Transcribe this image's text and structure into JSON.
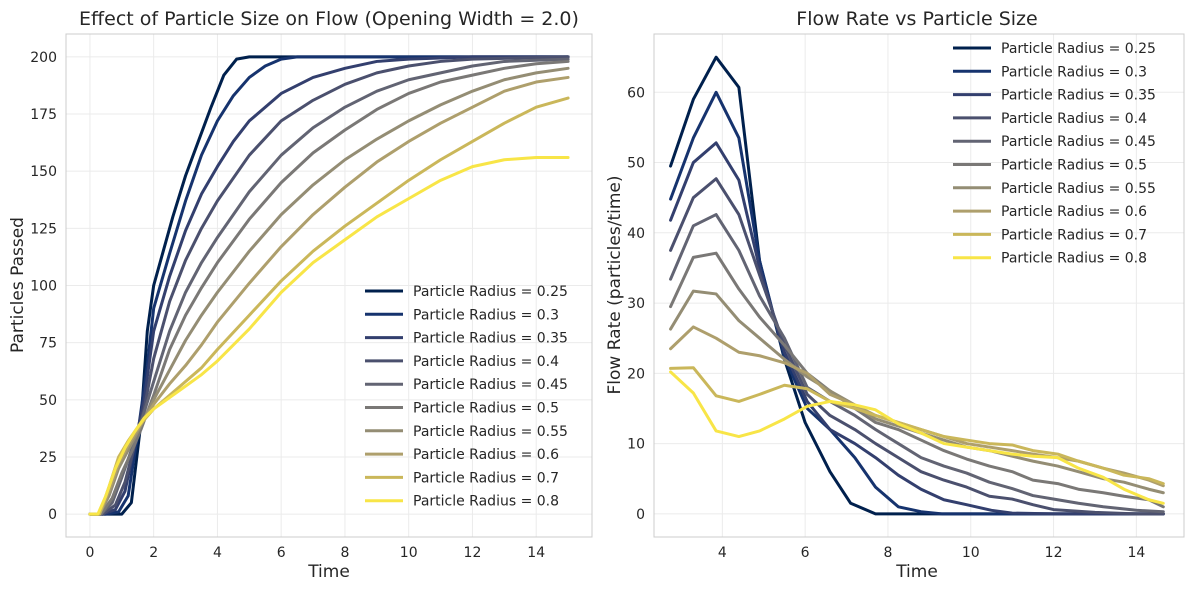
{
  "chart_data": [
    {
      "type": "line",
      "title": "Effect of Particle Size on Flow (Opening Width = 2.0)",
      "xlabel": "Time",
      "ylabel": "Particles Passed",
      "xlim": [
        -0.75,
        15.75
      ],
      "ylim": [
        -10,
        210
      ],
      "xticks": [
        0,
        2,
        4,
        6,
        8,
        10,
        12,
        14
      ],
      "yticks": [
        0,
        25,
        50,
        75,
        100,
        125,
        150,
        175,
        200
      ],
      "grid": true,
      "legend_position": "lower right",
      "series": [
        {
          "name": "Particle Radius = 0.25",
          "color": "#00204d",
          "x": [
            0,
            0.5,
            1,
            1.3,
            1.6,
            1.8,
            2,
            2.3,
            2.6,
            3,
            3.4,
            3.8,
            4.2,
            4.6,
            5,
            6,
            8,
            10,
            12,
            15
          ],
          "y": [
            0,
            0,
            0,
            5,
            40,
            80,
            100,
            115,
            130,
            148,
            163,
            178,
            192,
            199,
            200,
            200,
            200,
            200,
            200,
            200
          ]
        },
        {
          "name": "Particle Radius = 0.3",
          "color": "#16336e",
          "x": [
            0,
            0.5,
            0.9,
            1.2,
            1.5,
            1.8,
            2,
            2.5,
            3,
            3.5,
            4,
            4.5,
            5,
            5.5,
            6,
            6.5,
            7,
            8,
            10,
            15
          ],
          "y": [
            0,
            0,
            1,
            8,
            35,
            65,
            90,
            114,
            137,
            157,
            172,
            183,
            191,
            196,
            199,
            200,
            200,
            200,
            200,
            200
          ]
        },
        {
          "name": "Particle Radius = 0.35",
          "color": "#333f6e",
          "x": [
            0,
            0.4,
            0.8,
            1.1,
            1.4,
            1.7,
            2,
            2.5,
            3,
            3.5,
            4,
            4.5,
            5,
            6,
            7,
            8,
            9,
            10,
            12,
            15
          ],
          "y": [
            0,
            0,
            2,
            10,
            30,
            50,
            80,
            104,
            124,
            140,
            152,
            163,
            172,
            184,
            191,
            195,
            198,
            199,
            200,
            200
          ]
        },
        {
          "name": "Particle Radius = 0.4",
          "color": "#4b506e",
          "x": [
            0,
            0.4,
            0.8,
            1.1,
            1.4,
            1.7,
            2,
            2.5,
            3,
            3.5,
            4,
            5,
            6,
            7,
            8,
            9,
            10,
            11,
            12,
            15
          ],
          "y": [
            0,
            0,
            4,
            14,
            30,
            46,
            68,
            93,
            111,
            125,
            137,
            157,
            172,
            181,
            188,
            193,
            196,
            198,
            199,
            200
          ]
        },
        {
          "name": "Particle Radius = 0.45",
          "color": "#626473",
          "x": [
            0,
            0.35,
            0.7,
            1,
            1.3,
            1.6,
            2,
            2.5,
            3,
            3.5,
            4,
            5,
            6,
            7,
            8,
            9,
            10,
            11,
            12,
            13,
            15
          ],
          "y": [
            0,
            0,
            5,
            16,
            28,
            40,
            58,
            80,
            97,
            110,
            121,
            141,
            157,
            169,
            178,
            185,
            190,
            193,
            196,
            198,
            199
          ]
        },
        {
          "name": "Particle Radius = 0.5",
          "color": "#7a7876",
          "x": [
            0,
            0.35,
            0.7,
            1,
            1.3,
            1.6,
            2,
            2.5,
            3,
            3.5,
            4,
            5,
            6,
            7,
            8,
            9,
            10,
            11,
            12,
            13,
            14,
            15
          ],
          "y": [
            0,
            0,
            7,
            18,
            27,
            37,
            52,
            72,
            87,
            99,
            110,
            129,
            145,
            158,
            168,
            177,
            184,
            189,
            192,
            195,
            197,
            198
          ]
        },
        {
          "name": "Particle Radius = 0.55",
          "color": "#948d74",
          "x": [
            0,
            0.3,
            0.6,
            0.9,
            1.2,
            1.5,
            2,
            2.5,
            3,
            3.5,
            4,
            5,
            6,
            7,
            8,
            9,
            10,
            11,
            12,
            13,
            14,
            15
          ],
          "y": [
            0,
            0,
            8,
            20,
            28,
            36,
            50,
            63,
            76,
            87,
            97,
            115,
            131,
            144,
            155,
            164,
            172,
            179,
            185,
            190,
            193,
            195
          ]
        },
        {
          "name": "Particle Radius = 0.6",
          "color": "#ae9f6c",
          "x": [
            0,
            0.3,
            0.6,
            0.9,
            1.2,
            1.5,
            2,
            2.5,
            3,
            3.5,
            4,
            5,
            6,
            7,
            8,
            9,
            10,
            11,
            12,
            13,
            14,
            15
          ],
          "y": [
            0,
            0,
            10,
            22,
            30,
            37,
            48,
            57,
            65,
            74,
            84,
            101,
            117,
            131,
            143,
            154,
            163,
            171,
            178,
            185,
            189,
            191
          ]
        },
        {
          "name": "Particle Radius = 0.7",
          "color": "#cab75a",
          "x": [
            0,
            0.3,
            0.6,
            0.9,
            1.2,
            1.5,
            2,
            2.5,
            3,
            3.5,
            4,
            5,
            6,
            7,
            8,
            9,
            10,
            11,
            12,
            13,
            14,
            15
          ],
          "y": [
            0,
            0,
            12,
            25,
            32,
            38,
            46,
            52,
            58,
            64,
            72,
            87,
            102,
            115,
            126,
            136,
            146,
            155,
            163,
            171,
            178,
            182
          ]
        },
        {
          "name": "Particle Radius = 0.8",
          "color": "#f8e547",
          "x": [
            0,
            0.25,
            0.5,
            0.8,
            1.1,
            1.4,
            1.7,
            2,
            2.5,
            3,
            3.5,
            4,
            4.5,
            5,
            6,
            7,
            8,
            9,
            10,
            11,
            12,
            13,
            14,
            15
          ],
          "y": [
            0,
            0,
            8,
            20,
            29,
            36,
            42,
            46,
            51,
            56,
            61,
            67,
            74,
            81,
            97,
            110,
            120,
            130,
            138,
            146,
            152,
            155,
            156,
            156
          ]
        }
      ]
    },
    {
      "type": "line",
      "title": "Flow Rate vs Particle Size",
      "xlabel": "Time",
      "ylabel": "Flow Rate (particles/time)",
      "xlim": [
        2.35,
        15.15
      ],
      "ylim": [
        -3.3,
        68.3
      ],
      "xticks": [
        4,
        6,
        8,
        10,
        12,
        14
      ],
      "yticks": [
        0,
        10,
        20,
        30,
        40,
        50,
        60
      ],
      "grid": true,
      "legend_position": "upper right",
      "series": [
        {
          "name": "Particle Radius = 0.25",
          "color": "#00204d",
          "x": [
            2.75,
            3.3,
            3.85,
            4.4,
            4.9,
            5.5,
            6,
            6.6,
            7.1,
            7.7,
            8.2,
            9,
            10,
            11,
            12,
            13,
            14,
            14.65
          ],
          "y": [
            49.5,
            59,
            65,
            60.7,
            36,
            22,
            13,
            6,
            1.5,
            0,
            0,
            0,
            0,
            0,
            0,
            0,
            0,
            0
          ]
        },
        {
          "name": "Particle Radius = 0.3",
          "color": "#16336e",
          "x": [
            2.75,
            3.3,
            3.85,
            4.4,
            4.9,
            5.5,
            6.05,
            6.6,
            7.2,
            7.7,
            8.25,
            8.8,
            9.3,
            10,
            11,
            12,
            13,
            14,
            14.65
          ],
          "y": [
            44.8,
            53.5,
            60,
            53.5,
            36,
            22.3,
            15,
            12,
            8,
            3.8,
            1,
            0.3,
            0,
            0,
            0,
            0,
            0,
            0,
            0
          ]
        },
        {
          "name": "Particle Radius = 0.35",
          "color": "#333f6e",
          "x": [
            2.75,
            3.3,
            3.85,
            4.4,
            4.9,
            5.5,
            6.05,
            6.6,
            7.2,
            7.7,
            8.25,
            8.8,
            9.35,
            9.9,
            10.5,
            11,
            12,
            13,
            14,
            14.65
          ],
          "y": [
            41.8,
            50,
            52.8,
            47.5,
            35,
            23,
            16,
            12,
            10,
            8,
            5.5,
            3.5,
            2,
            1.3,
            0.5,
            0.1,
            0,
            0,
            0,
            0
          ]
        },
        {
          "name": "Particle Radius = 0.4",
          "color": "#4b506e",
          "x": [
            2.75,
            3.3,
            3.85,
            4.4,
            4.9,
            5.5,
            6.05,
            6.6,
            7.2,
            7.7,
            8.25,
            8.8,
            9.35,
            9.9,
            10.45,
            11,
            11.5,
            12,
            13,
            14,
            14.65
          ],
          "y": [
            37.5,
            45,
            47.7,
            42.6,
            34,
            24,
            17,
            14,
            12,
            10,
            8,
            6,
            4.8,
            3.8,
            2.5,
            2.1,
            1.3,
            0.6,
            0.2,
            0,
            0
          ]
        },
        {
          "name": "Particle Radius = 0.45",
          "color": "#626473",
          "x": [
            2.75,
            3.3,
            3.85,
            4.4,
            4.9,
            5.5,
            6.05,
            6.6,
            7.2,
            7.7,
            8.25,
            8.8,
            9.35,
            9.9,
            10.45,
            11,
            11.5,
            12.1,
            12.6,
            13.2,
            14,
            14.65
          ],
          "y": [
            33.4,
            41,
            42.6,
            37.5,
            31,
            25,
            18,
            16,
            14,
            12,
            10,
            8,
            6.8,
            5.8,
            4.5,
            3.6,
            2.6,
            2,
            1.5,
            1,
            0.5,
            0.3
          ]
        },
        {
          "name": "Particle Radius = 0.5",
          "color": "#7a7876",
          "x": [
            2.75,
            3.3,
            3.85,
            4.4,
            4.9,
            5.5,
            6.05,
            6.6,
            7.2,
            7.7,
            8.25,
            8.8,
            9.35,
            9.9,
            10.45,
            11,
            11.5,
            12.1,
            12.6,
            13.2,
            13.7,
            14.3,
            14.65
          ],
          "y": [
            29.5,
            36.5,
            37.1,
            32,
            28,
            24,
            20,
            17.5,
            15,
            13,
            12,
            10.5,
            9,
            7.8,
            6.8,
            6,
            4.8,
            4.3,
            3.5,
            3,
            2.5,
            2,
            1
          ]
        },
        {
          "name": "Particle Radius = 0.55",
          "color": "#948d74",
          "x": [
            2.75,
            3.3,
            3.85,
            4.4,
            4.9,
            5.5,
            6.05,
            6.6,
            7.2,
            7.7,
            8.25,
            8.8,
            9.35,
            9.9,
            10.45,
            11,
            11.5,
            12.1,
            12.6,
            13.2,
            13.7,
            14.3,
            14.65
          ],
          "y": [
            26.3,
            31.7,
            31.3,
            27.5,
            25,
            22,
            19.5,
            17.5,
            15.5,
            13.5,
            12.5,
            11.5,
            10.5,
            9.5,
            9,
            8.2,
            7.5,
            6.8,
            6,
            5,
            4.5,
            3.5,
            3
          ]
        },
        {
          "name": "Particle Radius = 0.6",
          "color": "#ae9f6c",
          "x": [
            2.75,
            3.3,
            3.85,
            4.4,
            4.9,
            5.5,
            6.05,
            6.6,
            7.2,
            7.7,
            8.25,
            8.8,
            9.35,
            9.9,
            10.45,
            11,
            11.5,
            12.1,
            12.6,
            13.2,
            13.7,
            14.3,
            14.65
          ],
          "y": [
            23.5,
            26.6,
            25,
            23,
            22.5,
            21.5,
            20,
            17,
            15.5,
            14,
            13,
            12,
            11,
            10,
            9.5,
            9,
            8.5,
            8,
            7.5,
            6.5,
            5.8,
            4.8,
            4
          ]
        },
        {
          "name": "Particle Radius = 0.7",
          "color": "#cab75a",
          "x": [
            2.75,
            3.3,
            3.85,
            4.4,
            4.9,
            5.5,
            6.05,
            6.6,
            7.2,
            7.7,
            8.25,
            8.8,
            9.35,
            9.9,
            10.45,
            11,
            11.5,
            12.1,
            12.6,
            13.2,
            13.7,
            14.3,
            14.65
          ],
          "y": [
            20.7,
            20.8,
            16.8,
            16,
            17,
            18.3,
            17.8,
            16,
            15,
            14,
            13,
            12,
            11,
            10.5,
            10,
            9.8,
            9,
            8.5,
            7.5,
            6.5,
            5.5,
            5,
            4.3
          ]
        },
        {
          "name": "Particle Radius = 0.8",
          "color": "#f8e547",
          "x": [
            2.75,
            3.3,
            3.85,
            4.4,
            4.9,
            5.5,
            6.05,
            6.6,
            7.2,
            7.7,
            8.25,
            8.8,
            9.35,
            9.9,
            10.45,
            11,
            11.5,
            12.1,
            12.6,
            13.2,
            13.7,
            14.3,
            14.65
          ],
          "y": [
            20.2,
            17.2,
            11.8,
            11,
            11.8,
            13.5,
            15.3,
            16,
            15.5,
            14.8,
            12.8,
            11.5,
            10,
            9.5,
            9,
            8.5,
            8.2,
            8,
            6.5,
            5.2,
            3.5,
            2,
            1.5
          ]
        }
      ]
    }
  ]
}
